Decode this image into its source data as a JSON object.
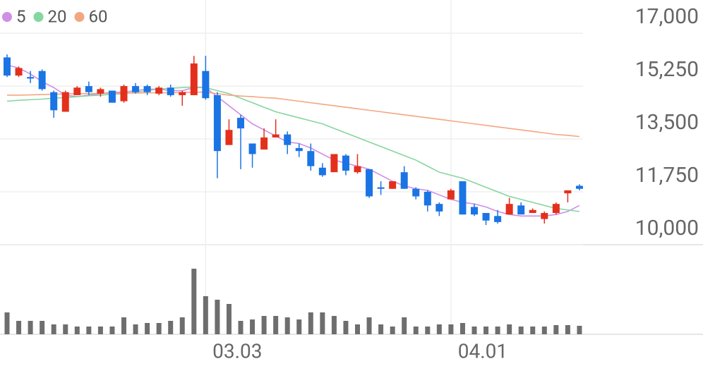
{
  "chart_data": {
    "type": "candlestick",
    "categories": [
      null,
      null,
      null,
      null,
      null,
      null,
      null,
      null,
      null,
      null,
      null,
      null,
      null,
      null,
      null,
      null,
      null,
      "03.03",
      null,
      null,
      null,
      null,
      null,
      null,
      null,
      null,
      null,
      null,
      null,
      null,
      null,
      null,
      null,
      null,
      null,
      null,
      null,
      null,
      "04.01",
      null,
      null,
      null,
      null,
      null,
      null,
      null,
      null,
      null,
      null,
      null
    ],
    "open": [
      16200,
      15600,
      15550,
      15750,
      15050,
      14400,
      14950,
      15250,
      15000,
      15100,
      14750,
      15250,
      15250,
      15000,
      15200,
      14950,
      14950,
      15750,
      14950,
      13300,
      14200,
      13350,
      13150,
      13550,
      13650,
      13200,
      13100,
      12550,
      12400,
      12950,
      12400,
      12500,
      11900,
      11850,
      12400,
      11850,
      11750,
      11350,
      11500,
      12100,
      11250,
      11050,
      10950,
      11000,
      11300,
      11050,
      10850,
      11050,
      11700,
      11950
    ],
    "high": [
      16300,
      15900,
      15750,
      15800,
      15100,
      15100,
      15250,
      15400,
      15200,
      15100,
      15300,
      15350,
      15300,
      15250,
      15300,
      15100,
      16250,
      16250,
      15050,
      14150,
      14300,
      13350,
      13850,
      14150,
      13750,
      13350,
      13350,
      12700,
      13000,
      13000,
      13000,
      12500,
      12100,
      12100,
      12600,
      11900,
      11800,
      11400,
      11850,
      12100,
      11350,
      11050,
      11150,
      11550,
      11400,
      11200,
      11100,
      11400,
      11800,
      12000
    ],
    "low": [
      15550,
      15550,
      15350,
      15100,
      14200,
      14400,
      14950,
      14950,
      14900,
      14700,
      14700,
      15000,
      14950,
      14950,
      14900,
      14600,
      14950,
      14800,
      12200,
      13300,
      12500,
      12550,
      13150,
      13550,
      13000,
      12900,
      12450,
      12250,
      12400,
      12300,
      12350,
      11550,
      11650,
      11850,
      11850,
      11500,
      11100,
      10950,
      11500,
      11000,
      10950,
      10650,
      10700,
      11000,
      11000,
      11050,
      10700,
      11000,
      11400,
      11800
    ],
    "close": [
      15600,
      15850,
      15500,
      15150,
      14450,
      15050,
      15200,
      15050,
      15150,
      14700,
      15250,
      15050,
      15050,
      15200,
      14950,
      15050,
      16000,
      14850,
      13100,
      13800,
      13850,
      13000,
      13550,
      13650,
      13300,
      13100,
      12600,
      12300,
      13000,
      12450,
      12600,
      11600,
      11850,
      12100,
      11850,
      11600,
      11300,
      11100,
      11800,
      11000,
      11000,
      10800,
      10750,
      11350,
      11000,
      11150,
      11050,
      11350,
      11800,
      11850
    ],
    "up_color": "#e3301c",
    "down_color": "#1b74e4",
    "ylim": [
      10000,
      18100
    ],
    "yticks": [
      {
        "value": 10000,
        "label": "10,000"
      },
      {
        "value": 11750,
        "label": "11,750"
      },
      {
        "value": 13500,
        "label": "13,500"
      },
      {
        "value": 15250,
        "label": "15,250"
      },
      {
        "value": 17000,
        "label": "17,000"
      }
    ],
    "grid": true,
    "series": [
      {
        "name": "5",
        "color": "#d08ee6",
        "values": [
          15950,
          15850,
          15650,
          15400,
          15200,
          14950,
          14900,
          14950,
          15000,
          15050,
          15050,
          15100,
          15150,
          15150,
          15100,
          15100,
          15200,
          15200,
          14900,
          14600,
          14300,
          14000,
          13800,
          13600,
          13400,
          13350,
          13200,
          13000,
          12800,
          12700,
          12600,
          12500,
          12300,
          12100,
          11950,
          11850,
          11800,
          11650,
          11500,
          11400,
          11350,
          11250,
          11100,
          11000,
          10950,
          10950,
          10950,
          11000,
          11100,
          11300
        ]
      },
      {
        "name": "20",
        "color": "#86d6a0",
        "values": [
          14750,
          14780,
          14800,
          14820,
          14850,
          14870,
          14900,
          14930,
          14950,
          14980,
          15000,
          15050,
          15100,
          15150,
          15180,
          15200,
          15220,
          15200,
          15100,
          15000,
          14850,
          14700,
          14550,
          14400,
          14300,
          14200,
          14100,
          14000,
          13850,
          13700,
          13550,
          13400,
          13250,
          13100,
          12950,
          12800,
          12600,
          12400,
          12300,
          12200,
          12050,
          11900,
          11750,
          11600,
          11500,
          11400,
          11300,
          11200,
          11150,
          11100
        ]
      },
      {
        "name": "60",
        "color": "#f3a781",
        "values": [
          14950,
          14950,
          14960,
          14970,
          14980,
          14990,
          15000,
          15000,
          15010,
          15010,
          15020,
          15020,
          15030,
          15030,
          15030,
          15040,
          15050,
          15050,
          15000,
          14950,
          14920,
          14900,
          14870,
          14850,
          14800,
          14750,
          14700,
          14650,
          14600,
          14550,
          14500,
          14450,
          14400,
          14350,
          14300,
          14250,
          14200,
          14150,
          14100,
          14050,
          14000,
          13950,
          13900,
          13850,
          13800,
          13750,
          13700,
          13650,
          13620,
          13580
        ]
      }
    ],
    "volume": {
      "color": "#6e6e6e",
      "ylim": [
        0,
        100
      ],
      "values": [
        31,
        19,
        19,
        19,
        14,
        14,
        11,
        11,
        11,
        11,
        24,
        14,
        16,
        16,
        19,
        24,
        93,
        54,
        49,
        43,
        19,
        21,
        26,
        26,
        24,
        21,
        31,
        31,
        26,
        19,
        14,
        24,
        14,
        11,
        24,
        11,
        11,
        14,
        14,
        16,
        11,
        11,
        11,
        14,
        11,
        11,
        11,
        13,
        13,
        12
      ]
    }
  }
}
